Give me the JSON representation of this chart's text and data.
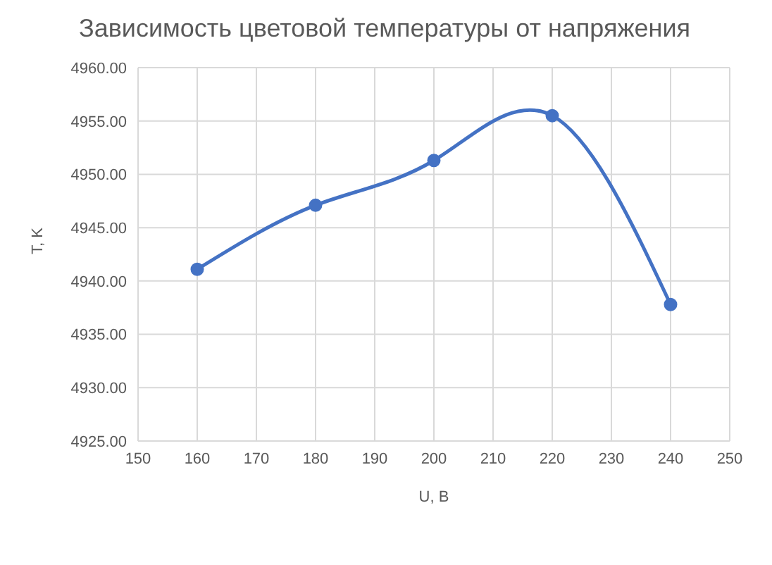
{
  "chart_data": {
    "type": "line",
    "title": "Зависимость цветовой температуры от напряжения",
    "xlabel": "U, B",
    "ylabel": "T, K",
    "x": [
      160,
      180,
      200,
      220,
      240
    ],
    "series": [
      {
        "color": "#4472c4",
        "values": [
          4941.1,
          4947.1,
          4951.3,
          4955.5,
          4937.8
        ]
      }
    ],
    "xlim": [
      150,
      250
    ],
    "xticks": [
      150,
      160,
      170,
      180,
      190,
      200,
      210,
      220,
      230,
      240,
      250
    ],
    "ylim": [
      4925,
      4960
    ],
    "yticks": [
      {
        "value": 4925,
        "label": "4925.00"
      },
      {
        "value": 4930,
        "label": "4930.00"
      },
      {
        "value": 4935,
        "label": "4935.00"
      },
      {
        "value": 4940,
        "label": "4940.00"
      },
      {
        "value": 4945,
        "label": "4945.00"
      },
      {
        "value": 4950,
        "label": "4950.00"
      },
      {
        "value": 4955,
        "label": "4955.00"
      },
      {
        "value": 4960,
        "label": "4960.00"
      }
    ],
    "grid": true,
    "marker": "circle",
    "line_style": "solid"
  }
}
